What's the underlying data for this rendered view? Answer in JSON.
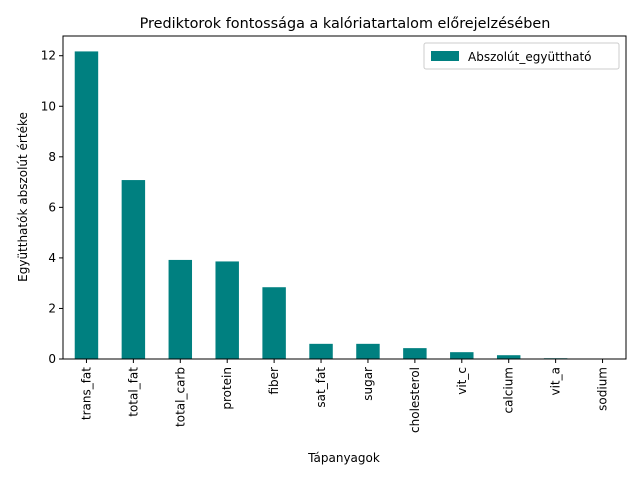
{
  "chart_data": {
    "type": "bar",
    "title": "Prediktorok fontossága a kalóriatartalom előrejelzésében",
    "xlabel": "Tápanyagok",
    "ylabel": "Együtthatók abszolút értéke",
    "categories": [
      "trans_fat",
      "total_fat",
      "total_carb",
      "protein",
      "fiber",
      "sat_fat",
      "sugar",
      "cholesterol",
      "vit_c",
      "calcium",
      "vit_a",
      "sodium"
    ],
    "series": [
      {
        "name": "Abszolút_együttható",
        "color": "#008080",
        "values": [
          12.17,
          7.08,
          3.92,
          3.86,
          2.84,
          0.6,
          0.6,
          0.43,
          0.27,
          0.15,
          0.03,
          0.004
        ]
      }
    ],
    "ylim": [
      0,
      12.78
    ],
    "yticks": [
      0,
      2,
      4,
      6,
      8,
      10,
      12
    ],
    "ytick_labels": [
      "0",
      "2",
      "4",
      "6",
      "8",
      "10",
      "12"
    ],
    "legend_position": "top-right",
    "grid": false
  }
}
